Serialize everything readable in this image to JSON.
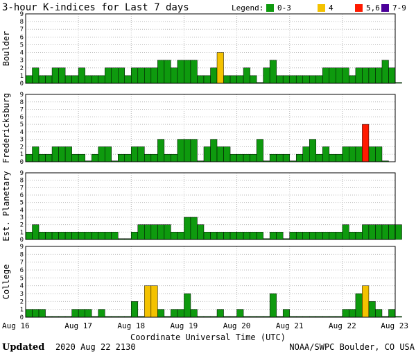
{
  "title": "3-hour K-indices for Last 7 days",
  "legend": {
    "label": "Legend:",
    "items": [
      {
        "name": "0-3",
        "color": "#0e9a0e"
      },
      {
        "name": "4",
        "color": "#f4c200"
      },
      {
        "name": "5,6",
        "color": "#ff1a00"
      },
      {
        "name": "7-9",
        "color": "#4b0099"
      }
    ]
  },
  "footer": {
    "updated_label": "Updated",
    "updated_value": "2020 Aug 22 2130",
    "credit": "NOAA/SWPC Boulder, CO USA"
  },
  "chart_data": {
    "type": "bar",
    "title": "3-hour K-indices for Last 7 days",
    "xlabel": "Coordinate Universal Time (UTC)",
    "x_ticks": [
      "Aug 16",
      "Aug 17",
      "Aug 18",
      "Aug 19",
      "Aug 20",
      "Aug 21",
      "Aug 22",
      "Aug 23"
    ],
    "ylim": [
      0,
      9
    ],
    "y_ticks": [
      0,
      1,
      2,
      3,
      4,
      5,
      6,
      7,
      8,
      9
    ],
    "bins_per_day": 8,
    "grid": true,
    "panels": [
      {
        "name": "Boulder",
        "values": [
          1,
          2,
          1,
          1,
          2,
          2,
          1,
          1,
          2,
          1,
          1,
          1,
          2,
          2,
          2,
          1,
          2,
          2,
          2,
          2,
          3,
          3,
          2,
          3,
          3,
          3,
          1,
          1,
          2,
          4,
          1,
          1,
          1,
          2,
          1,
          0,
          2,
          3,
          1,
          1,
          1,
          1,
          1,
          1,
          1,
          2,
          2,
          2,
          2,
          1,
          2,
          2,
          2,
          2,
          3,
          2,
          0
        ]
      },
      {
        "name": "Fredericksburg",
        "values": [
          1,
          2,
          1,
          1,
          2,
          2,
          2,
          1,
          1,
          0,
          1,
          2,
          2,
          0,
          1,
          1,
          2,
          2,
          1,
          1,
          3,
          1,
          1,
          3,
          3,
          3,
          0,
          2,
          3,
          2,
          2,
          1,
          1,
          1,
          1,
          3,
          0,
          1,
          1,
          1,
          0,
          1,
          2,
          3,
          1,
          2,
          1,
          1,
          2,
          2,
          2,
          5,
          2,
          2,
          0
        ]
      },
      {
        "name": "Est. Planetary",
        "values": [
          1,
          2,
          1,
          1,
          1,
          1,
          1,
          1,
          1,
          1,
          1,
          1,
          1,
          1,
          0,
          0,
          1,
          2,
          2,
          2,
          2,
          2,
          1,
          1,
          3,
          3,
          2,
          1,
          1,
          1,
          1,
          1,
          1,
          1,
          1,
          1,
          0,
          1,
          1,
          0,
          1,
          1,
          1,
          1,
          1,
          1,
          1,
          1,
          2,
          1,
          1,
          2,
          2,
          2,
          2,
          2,
          2
        ]
      },
      {
        "name": "College",
        "values": [
          1,
          1,
          1,
          0,
          0,
          0,
          0,
          1,
          1,
          1,
          0,
          1,
          0,
          0,
          0,
          0,
          2,
          0,
          4,
          4,
          1,
          0,
          1,
          1,
          3,
          1,
          0,
          0,
          0,
          1,
          0,
          0,
          1,
          0,
          0,
          0,
          0,
          3,
          0,
          1,
          0,
          0,
          0,
          0,
          0,
          0,
          0,
          0,
          1,
          1,
          3,
          4,
          2,
          1,
          0,
          1,
          0
        ]
      }
    ]
  }
}
